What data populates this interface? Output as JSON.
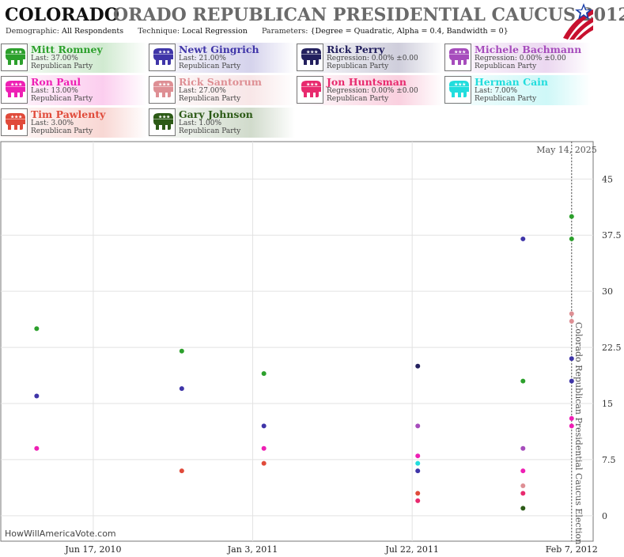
{
  "header": {
    "title_bold": "COLORADO",
    "title_rest": "ORADO REPUBLICAN PRESIDENTIAL CAUCUS 2012",
    "demographic_label": "Demographic:",
    "demographic_value": "All Respondents",
    "technique_label": "Technique:",
    "technique_value": "Local Regression",
    "parameters_label": "Parameters:",
    "parameters_value": "{Degree = Quadratic, Alpha = 0.4, Bandwidth = 0}"
  },
  "legend": [
    {
      "name": "Mitt Romney",
      "line1": "Last: 37.00%",
      "line2": "Republican Party",
      "color": "#2ca02c"
    },
    {
      "name": "Newt Gingrich",
      "line1": "Last: 21.00%",
      "line2": "Republican Party",
      "color": "#3f35a8"
    },
    {
      "name": "Rick Perry",
      "line1": "Regression: 0.00% ±0.00",
      "line2": "Republican Party",
      "color": "#23205e"
    },
    {
      "name": "Michele Bachmann",
      "line1": "Regression: 0.00% ±0.00",
      "line2": "Republican Party",
      "color": "#a64cbc"
    },
    {
      "name": "Ron Paul",
      "line1": "Last: 13.00%",
      "line2": "Republican Party",
      "color": "#ee1fb4"
    },
    {
      "name": "Rick Santorum",
      "line1": "Last: 27.00%",
      "line2": "Republican Party",
      "color": "#de8f94"
    },
    {
      "name": "Jon Huntsman",
      "line1": "Regression: 0.00% ±0.00",
      "line2": "Republican Party",
      "color": "#e82a6e"
    },
    {
      "name": "Herman Cain",
      "line1": "Last: 7.00%",
      "line2": "Republican Party",
      "color": "#22dddd"
    },
    {
      "name": "Tim Pawlenty",
      "line1": "Last: 3.00%",
      "line2": "Republican Party",
      "color": "#e04a3a"
    },
    {
      "name": "Gary Johnson",
      "line1": "Last: 1.00%",
      "line2": "Republican Party",
      "color": "#2c5a16"
    }
  ],
  "watermark": "HowWillAmericaVote.com",
  "chart_data": {
    "type": "scatter",
    "date_label": "May 14, 2025",
    "event_label": "Colorado Republican Presidential Caucus Election",
    "event_date": "2012-02-07",
    "x_ticks": [
      {
        "date": "2010-06-17",
        "label": "Jun 17, 2010"
      },
      {
        "date": "2011-01-03",
        "label": "Jan 3, 2011"
      },
      {
        "date": "2011-07-22",
        "label": "Jul 22, 2011"
      },
      {
        "date": "2012-02-07",
        "label": "Feb 7, 2012"
      }
    ],
    "xlim": [
      "2010-02-21",
      "2012-03-05"
    ],
    "y_ticks": [
      0,
      7.5,
      15,
      22.5,
      30,
      37.5,
      45
    ],
    "ylim": [
      -3.4,
      50
    ],
    "grid": true,
    "series": [
      {
        "name": "Mitt Romney",
        "color": "#2ca02c",
        "points": [
          [
            "2010-04-07",
            25
          ],
          [
            "2010-10-06",
            22
          ],
          [
            "2011-01-17",
            19
          ],
          [
            "2011-12-08",
            18
          ],
          [
            "2012-02-07",
            40
          ],
          [
            "2012-02-07",
            37
          ]
        ]
      },
      {
        "name": "Newt Gingrich",
        "color": "#3f35a8",
        "points": [
          [
            "2010-04-07",
            16
          ],
          [
            "2010-10-06",
            17
          ],
          [
            "2011-01-17",
            12
          ],
          [
            "2011-07-29",
            6
          ],
          [
            "2011-12-08",
            37
          ],
          [
            "2012-02-07",
            21
          ],
          [
            "2012-02-07",
            18
          ]
        ]
      },
      {
        "name": "Rick Perry",
        "color": "#23205e",
        "points": [
          [
            "2011-07-29",
            20
          ]
        ]
      },
      {
        "name": "Michele Bachmann",
        "color": "#a64cbc",
        "points": [
          [
            "2011-07-29",
            12
          ],
          [
            "2011-12-08",
            9
          ]
        ]
      },
      {
        "name": "Ron Paul",
        "color": "#ee1fb4",
        "points": [
          [
            "2010-04-07",
            9
          ],
          [
            "2011-01-17",
            9
          ],
          [
            "2011-07-29",
            8
          ],
          [
            "2011-12-08",
            6
          ],
          [
            "2012-02-07",
            13
          ],
          [
            "2012-02-07",
            12
          ]
        ]
      },
      {
        "name": "Rick Santorum",
        "color": "#de8f94",
        "points": [
          [
            "2011-12-08",
            4
          ],
          [
            "2012-02-07",
            27
          ],
          [
            "2012-02-07",
            26
          ]
        ]
      },
      {
        "name": "Jon Huntsman",
        "color": "#e82a6e",
        "points": [
          [
            "2011-07-29",
            2
          ],
          [
            "2011-12-08",
            3
          ]
        ]
      },
      {
        "name": "Herman Cain",
        "color": "#22dddd",
        "points": [
          [
            "2011-07-29",
            7
          ]
        ]
      },
      {
        "name": "Tim Pawlenty",
        "color": "#e04a3a",
        "points": [
          [
            "2010-10-06",
            6
          ],
          [
            "2011-01-17",
            7
          ],
          [
            "2011-07-29",
            3
          ]
        ]
      },
      {
        "name": "Gary Johnson",
        "color": "#2c5a16",
        "points": [
          [
            "2011-12-08",
            1
          ]
        ]
      }
    ]
  }
}
